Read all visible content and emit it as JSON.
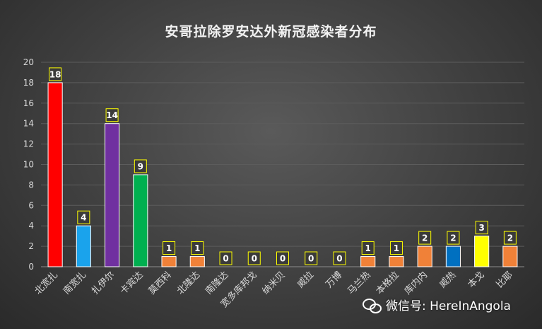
{
  "chart_data": {
    "type": "bar",
    "title": "安哥拉除罗安达外新冠感染者分布",
    "xlabel": "",
    "ylabel": "",
    "ylim": [
      0,
      20
    ],
    "yticks": [
      0,
      2,
      4,
      6,
      8,
      10,
      12,
      14,
      16,
      18,
      20
    ],
    "grid": true,
    "categories": [
      "北宽扎",
      "南宽扎",
      "扎伊尔",
      "卡宾达",
      "莫西科",
      "北隆达",
      "南隆达",
      "宽多库邦戈",
      "纳米贝",
      "威拉",
      "万博",
      "马兰热",
      "本格拉",
      "库内内",
      "威热",
      "本戈",
      "比耶"
    ],
    "values": [
      18,
      4,
      14,
      9,
      1,
      1,
      0,
      0,
      0,
      0,
      0,
      1,
      1,
      2,
      2,
      3,
      2
    ],
    "colors": [
      "#ff0000",
      "#1aa3ec",
      "#7030a0",
      "#00b050",
      "#f08138",
      "#f08138",
      "#f08138",
      "#f08138",
      "#f08138",
      "#f08138",
      "#f08138",
      "#f08138",
      "#f08138",
      "#f08138",
      "#0070c0",
      "#ffff00",
      "#f08138"
    ],
    "data_label_style": {
      "border_color": "#ffff00",
      "background": "#3a3a3a",
      "text_color": "#ffffff"
    }
  },
  "watermark": {
    "icon": "wechat-icon",
    "text": "微信号: HereInAngola"
  }
}
